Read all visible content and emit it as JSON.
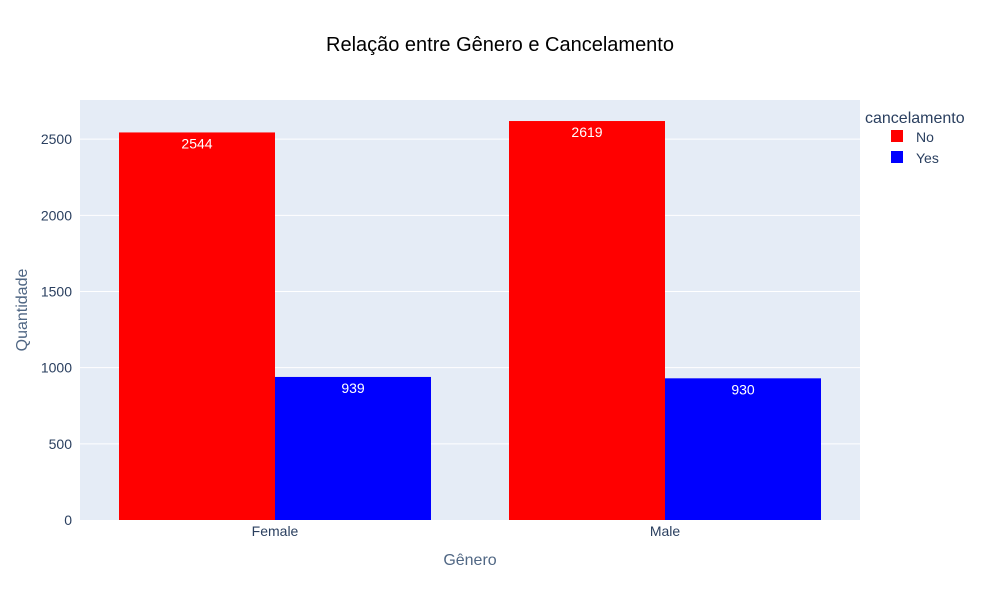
{
  "chart_data": {
    "type": "bar",
    "title": "Relação entre Gênero e Cancelamento",
    "xlabel": "Gênero",
    "ylabel": "Quantidade",
    "categories": [
      "Female",
      "Male"
    ],
    "series": [
      {
        "name": "No",
        "color": "#ff0000",
        "values": [
          2544,
          2619
        ]
      },
      {
        "name": "Yes",
        "color": "#0000ff",
        "values": [
          939,
          930
        ]
      }
    ],
    "ylim": [
      0,
      2757
    ],
    "yticks": [
      0,
      500,
      1000,
      1500,
      2000,
      2500
    ],
    "barmode": "group",
    "grid": true,
    "plot_background": "#e5ecf6",
    "legend": {
      "title": "cancelamento",
      "placement": "top-right"
    }
  }
}
